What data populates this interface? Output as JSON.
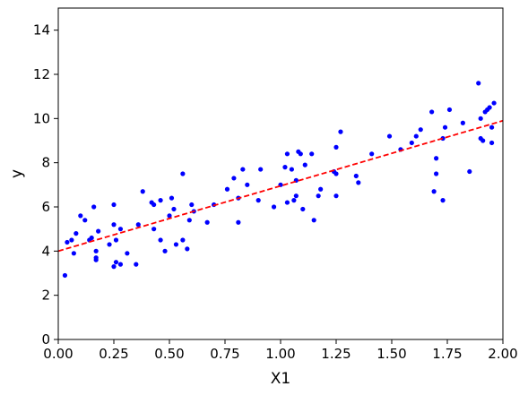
{
  "chart_data": {
    "type": "scatter",
    "xlabel": "X1",
    "ylabel": "y",
    "xlim": [
      0,
      2
    ],
    "ylim": [
      0,
      15
    ],
    "xticks": [
      "0.00",
      "0.25",
      "0.50",
      "0.75",
      "1.00",
      "1.25",
      "1.50",
      "1.75",
      "2.00"
    ],
    "yticks": [
      "0",
      "2",
      "4",
      "6",
      "8",
      "10",
      "12",
      "14"
    ],
    "xtick_values": [
      0,
      0.25,
      0.5,
      0.75,
      1.0,
      1.25,
      1.5,
      1.75,
      2.0
    ],
    "ytick_values": [
      0,
      2,
      4,
      6,
      8,
      10,
      12,
      14
    ],
    "grid": false,
    "legend": "none",
    "point_color": "#0000ff",
    "line_color": "#ff0000",
    "series": [
      {
        "kind": "points",
        "x": [
          0.03,
          0.04,
          0.06,
          0.07,
          0.08,
          0.1,
          0.12,
          0.14,
          0.15,
          0.16,
          0.17,
          0.17,
          0.17,
          0.18,
          0.23,
          0.25,
          0.25,
          0.25,
          0.26,
          0.26,
          0.28,
          0.28,
          0.31,
          0.35,
          0.36,
          0.38,
          0.42,
          0.43,
          0.43,
          0.46,
          0.46,
          0.48,
          0.5,
          0.51,
          0.52,
          0.53,
          0.56,
          0.56,
          0.58,
          0.59,
          0.6,
          0.61,
          0.67,
          0.7,
          0.76,
          0.79,
          0.81,
          0.81,
          0.83,
          0.85,
          0.9,
          0.91,
          0.97,
          1.0,
          1.02,
          1.03,
          1.03,
          1.05,
          1.06,
          1.07,
          1.07,
          1.08,
          1.09,
          1.1,
          1.11,
          1.14,
          1.15,
          1.17,
          1.18,
          1.24,
          1.25,
          1.25,
          1.25,
          1.27,
          1.34,
          1.35,
          1.41,
          1.49,
          1.54,
          1.59,
          1.61,
          1.63,
          1.68,
          1.69,
          1.7,
          1.7,
          1.73,
          1.73,
          1.74,
          1.76,
          1.82,
          1.85,
          1.89,
          1.9,
          1.9,
          1.91,
          1.92,
          1.93,
          1.94,
          1.95,
          1.95,
          1.96
        ],
        "y": [
          2.9,
          4.4,
          4.5,
          3.9,
          4.8,
          5.6,
          5.4,
          4.5,
          4.6,
          6.0,
          3.7,
          3.6,
          4.0,
          4.9,
          4.3,
          6.1,
          5.2,
          3.3,
          3.5,
          4.5,
          5.0,
          3.4,
          3.9,
          3.4,
          5.2,
          6.7,
          6.2,
          6.1,
          5.0,
          6.3,
          4.5,
          4.0,
          5.6,
          6.4,
          5.9,
          4.3,
          7.5,
          4.5,
          4.1,
          5.4,
          6.1,
          5.8,
          5.3,
          6.1,
          6.8,
          7.3,
          6.4,
          5.3,
          7.7,
          7.0,
          6.3,
          7.7,
          6.0,
          7.0,
          7.8,
          6.2,
          8.4,
          7.7,
          6.3,
          6.5,
          7.2,
          8.5,
          8.4,
          5.9,
          7.9,
          8.4,
          5.4,
          6.5,
          6.8,
          7.6,
          7.5,
          8.7,
          6.5,
          9.4,
          7.4,
          7.1,
          8.4,
          9.2,
          8.6,
          8.9,
          9.2,
          9.5,
          10.3,
          6.7,
          7.5,
          8.2,
          6.3,
          9.1,
          9.6,
          10.4,
          9.8,
          7.6,
          11.6,
          9.1,
          10.0,
          9.0,
          10.3,
          10.4,
          10.5,
          9.6,
          8.9,
          10.7
        ]
      },
      {
        "kind": "line",
        "style": "dashed",
        "x": [
          0,
          2
        ],
        "y": [
          4.0,
          9.9
        ]
      }
    ]
  }
}
